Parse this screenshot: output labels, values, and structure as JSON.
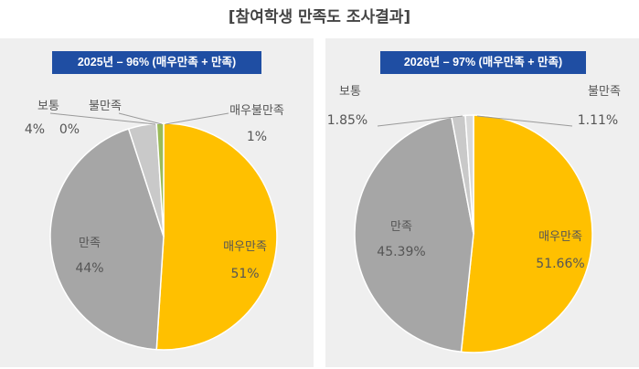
{
  "header": {
    "title": "[참여학생 만족도 조사결과]"
  },
  "chart_data": [
    {
      "type": "pie",
      "title": "2025년 – 96% (매우만족 + 만족)",
      "categories": [
        "매우만족",
        "만족",
        "보통",
        "불만족",
        "매우불만족"
      ],
      "values": [
        51,
        44,
        4,
        0,
        1
      ],
      "value_labels": [
        "51%",
        "44%",
        "4%",
        "0%",
        "1%"
      ],
      "colors": [
        "#ffc000",
        "#a6a6a6",
        "#c9c9c9",
        "#d9d9d9",
        "#9bbb59"
      ]
    },
    {
      "type": "pie",
      "title": "2026년 – 97% (매우만족 + 만족)",
      "categories": [
        "매우만족",
        "만족",
        "보통",
        "불만족"
      ],
      "values": [
        51.66,
        45.39,
        1.85,
        1.11
      ],
      "value_labels": [
        "51.66%",
        "45.39%",
        "1.85%",
        "1.11%"
      ],
      "colors": [
        "#ffc000",
        "#a6a6a6",
        "#c9c9c9",
        "#d9d9d9"
      ]
    }
  ]
}
